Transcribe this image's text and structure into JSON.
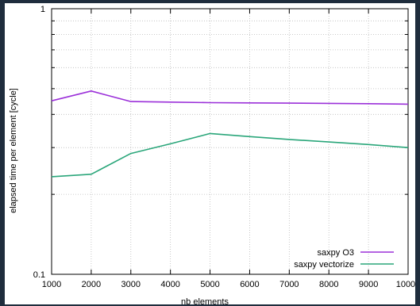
{
  "chart_data": {
    "type": "line",
    "xlabel": "nb elements",
    "ylabel": "elapsed time per element [cycle]",
    "x_scale": "linear",
    "y_scale": "log",
    "xlim": [
      1000,
      10000
    ],
    "ylim": [
      0.1,
      1
    ],
    "x_ticks": [
      1000,
      2000,
      3000,
      4000,
      5000,
      6000,
      7000,
      8000,
      9000,
      10000
    ],
    "y_tick_labels": [
      {
        "value": 1,
        "label": "1"
      },
      {
        "value": 0.1,
        "label": "0.1"
      }
    ],
    "y_minor_ticks": [
      0.2,
      0.3,
      0.4,
      0.5,
      0.6,
      0.7,
      0.8,
      0.9
    ],
    "grid": true,
    "legend_position": "bottom-right",
    "x": [
      1000,
      2000,
      3000,
      4000,
      5000,
      6000,
      7000,
      8000,
      9000,
      10000
    ],
    "series": [
      {
        "name": "saxpy O3",
        "color": "#9b30d9",
        "values": [
          0.45,
          0.49,
          0.447,
          0.445,
          0.443,
          0.442,
          0.441,
          0.44,
          0.439,
          0.437
        ]
      },
      {
        "name": "saxpy vectorize",
        "color": "#2aa67a",
        "values": [
          0.233,
          0.238,
          0.285,
          0.31,
          0.339,
          0.33,
          0.322,
          0.315,
          0.308,
          0.3
        ]
      }
    ]
  }
}
